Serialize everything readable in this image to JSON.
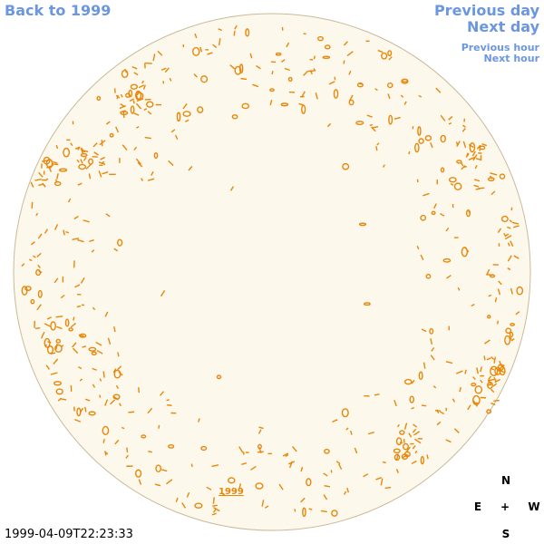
{
  "navigation": {
    "back": "Back to 1999",
    "previous_day": "Previous day",
    "next_day": "Next day",
    "previous_hour": "Previous hour",
    "next_hour": "Next hour"
  },
  "map": {
    "label": "1999",
    "timestamp": "1999-04-09T22:23:33"
  },
  "compass": {
    "north": "N",
    "east": "E",
    "center": "+",
    "west": "W",
    "south": "S"
  }
}
